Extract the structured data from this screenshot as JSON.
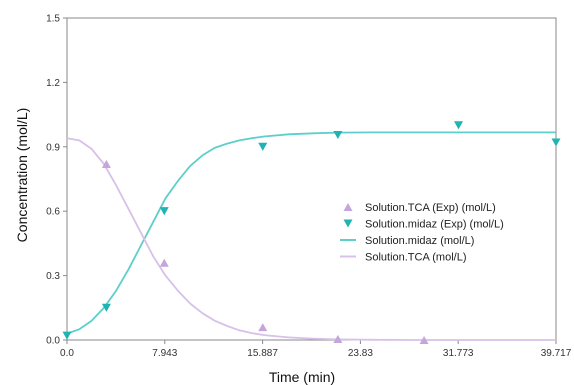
{
  "chart_data": {
    "type": "line",
    "xlabel": "Time (min)",
    "ylabel": "Concentration (mol/L)",
    "xlim": [
      0,
      39.717
    ],
    "ylim": [
      0,
      1.5
    ],
    "x_ticks": [
      "0.0",
      "7.943",
      "15.887",
      "23.83",
      "31.773",
      "39.717"
    ],
    "y_ticks": [
      "0.0",
      "0.3",
      "0.6",
      "0.9",
      "1.2",
      "1.5"
    ],
    "grid": false,
    "legend_position": "right",
    "series": [
      {
        "name": "Solution.TCA (Exp) (mol/L)",
        "kind": "scatter",
        "marker": "triangle-up",
        "color": "#c4a6dc",
        "x": [
          3.2,
          7.9,
          15.9,
          22.0,
          29.0
        ],
        "y": [
          0.82,
          0.36,
          0.06,
          0.005,
          0.0
        ]
      },
      {
        "name": "Solution.midaz (Exp) (mol/L)",
        "kind": "scatter",
        "marker": "triangle-down",
        "color": "#1fb3b3",
        "x": [
          0.0,
          3.2,
          7.9,
          15.9,
          22.0,
          31.8,
          39.717
        ],
        "y": [
          0.02,
          0.15,
          0.6,
          0.9,
          0.955,
          1.0,
          0.92
        ]
      },
      {
        "name": "Solution.midaz (mol/L)",
        "kind": "line",
        "color": "#5ccfca",
        "x": [
          0,
          1,
          2,
          3,
          4,
          5,
          6,
          7,
          8,
          9,
          10,
          11,
          12,
          13,
          14,
          15,
          16,
          18,
          20,
          22,
          25,
          28,
          32,
          36,
          39.717
        ],
        "y": [
          0.03,
          0.05,
          0.09,
          0.15,
          0.23,
          0.33,
          0.44,
          0.55,
          0.66,
          0.74,
          0.81,
          0.86,
          0.895,
          0.915,
          0.93,
          0.94,
          0.948,
          0.958,
          0.963,
          0.966,
          0.967,
          0.967,
          0.967,
          0.967,
          0.967
        ]
      },
      {
        "name": "Solution.TCA (mol/L)",
        "kind": "line",
        "color": "#d8c0e8",
        "x": [
          0,
          1,
          2,
          3,
          4,
          5,
          6,
          7,
          8,
          9,
          10,
          11,
          12,
          13,
          14,
          15,
          16,
          18,
          20,
          22,
          25,
          28,
          32,
          36,
          39.717
        ],
        "y": [
          0.94,
          0.93,
          0.89,
          0.82,
          0.72,
          0.61,
          0.5,
          0.39,
          0.3,
          0.23,
          0.17,
          0.125,
          0.09,
          0.065,
          0.045,
          0.032,
          0.023,
          0.012,
          0.006,
          0.003,
          0.001,
          0.0,
          0.0,
          0.0,
          0.0
        ]
      }
    ]
  }
}
